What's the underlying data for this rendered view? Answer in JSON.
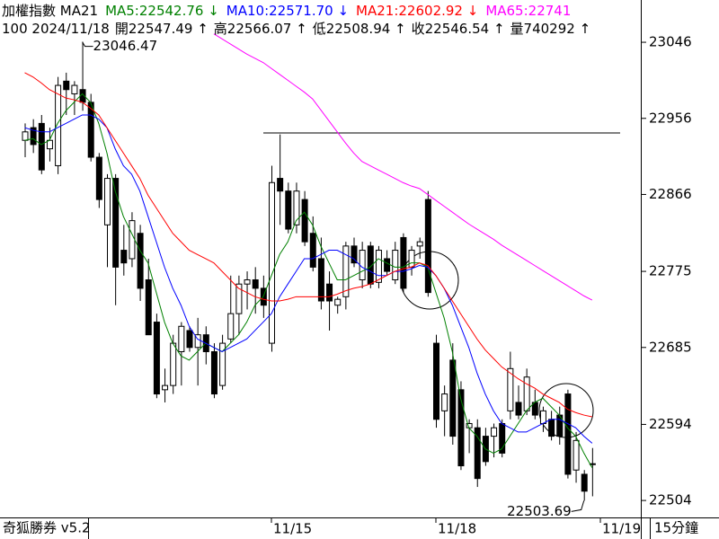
{
  "chart_data": {
    "type": "candlestick",
    "header": {
      "title": "加權指數 MA21",
      "ma_labels": [
        {
          "text": "MA5:22542.76 ↓",
          "color": "#008000"
        },
        {
          "text": "MA10:22571.70 ↓",
          "color": "#0000ff"
        },
        {
          "text": "MA21:22602.92 ↓",
          "color": "#ff0000"
        },
        {
          "text": "MA65:22741",
          "color": "#ff00ff"
        }
      ],
      "quote": [
        "100 2024/11/18",
        "開22547.49 ↑",
        "高22566.07 ↑",
        "低22508.94 ↑",
        "收22546.54 ↑",
        "量740292 ↑"
      ]
    },
    "footer": {
      "app": "奇狐勝券 v5.2",
      "period": "15分鐘"
    },
    "xlabels": [
      {
        "index": 30,
        "label": "11/15"
      },
      {
        "index": 50,
        "label": "11/18"
      },
      {
        "index": 70,
        "label": "11/19"
      }
    ],
    "open": [
      22930,
      22945,
      22950,
      22920,
      22900,
      23000,
      22985,
      22990,
      22975,
      22910,
      22830,
      22885,
      22800,
      22790,
      22820,
      22765,
      22715,
      22635,
      22640,
      22680,
      22705,
      22685,
      22700,
      22680,
      22640,
      22695,
      22725,
      22760,
      22765,
      22755,
      22690,
      22885,
      22870,
      22830,
      22860,
      22820,
      22790,
      22760,
      22735,
      22745,
      22805,
      22765,
      22805,
      22762,
      22790,
      22765,
      22815,
      22780,
      22805,
      22860,
      22690,
      22610,
      22670,
      22635,
      22590,
      22590,
      22580,
      22580,
      22595,
      22610,
      22620,
      22610,
      22620,
      22595,
      22600,
      22605,
      22630,
      22540,
      22535,
      22547.49
    ],
    "high": [
      22950,
      22955,
      22960,
      22945,
      23005,
      23010,
      23000,
      23046.47,
      22985,
      22915,
      22890,
      22890,
      22830,
      22845,
      22830,
      22790,
      22725,
      22660,
      22700,
      22715,
      22710,
      22720,
      22710,
      22690,
      22700,
      22770,
      22770,
      22775,
      22780,
      22770,
      22900,
      22937,
      22880,
      22880,
      22870,
      22840,
      22815,
      22775,
      22745,
      22810,
      22815,
      22810,
      22810,
      22805,
      22800,
      22810,
      22820,
      22805,
      22815,
      22870,
      22700,
      22640,
      22690,
      22645,
      22600,
      22600,
      22590,
      22595,
      22600,
      22680,
      22640,
      22660,
      22635,
      22615,
      22610,
      22615,
      22635,
      22585,
      22540,
      22566.07
    ],
    "low": [
      22910,
      22915,
      22890,
      22905,
      22890,
      22960,
      22960,
      22965,
      22905,
      22850,
      22780,
      22735,
      22770,
      22780,
      22740,
      22700,
      22625,
      22620,
      22630,
      22640,
      22680,
      22640,
      22665,
      22625,
      22635,
      22690,
      22700,
      22730,
      22725,
      22720,
      22680,
      22830,
      22820,
      22820,
      22805,
      22775,
      22730,
      22705,
      22725,
      22730,
      22780,
      22755,
      22755,
      22755,
      22770,
      22760,
      22750,
      22770,
      22790,
      22745,
      22590,
      22580,
      22570,
      22540,
      22560,
      22520,
      22545,
      22555,
      22555,
      22600,
      22600,
      22605,
      22600,
      22585,
      22575,
      22570,
      22530,
      22525,
      22503.69,
      22508.94
    ],
    "close": [
      22940,
      22925,
      22895,
      22930,
      22995,
      22990,
      22995,
      22975,
      22910,
      22860,
      22885,
      22780,
      22785,
      22835,
      22755,
      22700,
      22630,
      22640,
      22690,
      22710,
      22685,
      22700,
      22680,
      22630,
      22690,
      22725,
      22760,
      22765,
      22755,
      22735,
      22880,
      22870,
      22825,
      22870,
      22810,
      22780,
      22740,
      22740,
      22742,
      22805,
      22785,
      22800,
      22760,
      22800,
      22775,
      22800,
      22755,
      22800,
      22810,
      22750,
      22600,
      22630,
      22580,
      22545,
      22595,
      22530,
      22550,
      22590,
      22560,
      22660,
      22605,
      22650,
      22605,
      22610,
      22580,
      22580,
      22535,
      22575,
      22515,
      22546.54
    ],
    "up_color": "#ffffff",
    "down_color": "#000000",
    "series": [
      {
        "name": "MA5",
        "color": "#008000",
        "values": [
          22930,
          22932,
          22925,
          22930,
          22950,
          22965,
          22975,
          22985,
          22975,
          22950,
          22915,
          22870,
          22840,
          22820,
          22800,
          22785,
          22750,
          22715,
          22690,
          22675,
          22670,
          22680,
          22690,
          22685,
          22680,
          22690,
          22700,
          22715,
          22735,
          22745,
          22770,
          22795,
          22810,
          22835,
          22845,
          22830,
          22805,
          22785,
          22765,
          22765,
          22770,
          22775,
          22780,
          22790,
          22785,
          22780,
          22780,
          22785,
          22785,
          22780,
          22750,
          22720,
          22680,
          22625,
          22590,
          22580,
          22565,
          22560,
          22565,
          22580,
          22595,
          22610,
          22620,
          22625,
          22615,
          22605,
          22590,
          22580,
          22560,
          22542.76
        ]
      },
      {
        "name": "MA10",
        "color": "#0000ff",
        "values": [
          22945,
          22942,
          22940,
          22940,
          22945,
          22950,
          22955,
          22960,
          22960,
          22955,
          22945,
          22920,
          22900,
          22890,
          22870,
          22840,
          22810,
          22780,
          22755,
          22735,
          22710,
          22695,
          22690,
          22685,
          22680,
          22685,
          22690,
          22695,
          22705,
          22715,
          22725,
          22745,
          22760,
          22775,
          22790,
          22790,
          22795,
          22800,
          22800,
          22795,
          22790,
          22780,
          22775,
          22770,
          22770,
          22775,
          22775,
          22778,
          22782,
          22780,
          22770,
          22755,
          22735,
          22710,
          22685,
          22655,
          22630,
          22610,
          22595,
          22590,
          22585,
          22585,
          22590,
          22595,
          22600,
          22600,
          22595,
          22590,
          22580,
          22571.7
        ]
      },
      {
        "name": "MA21",
        "color": "#ff0000",
        "values": [
          23010,
          23005,
          22998,
          22990,
          22985,
          22980,
          22978,
          22975,
          22968,
          22960,
          22945,
          22930,
          22915,
          22900,
          22885,
          22865,
          22850,
          22835,
          22820,
          22810,
          22800,
          22795,
          22790,
          22785,
          22775,
          22765,
          22755,
          22750,
          22745,
          22742,
          22740,
          22740,
          22742,
          22745,
          22745,
          22745,
          22745,
          22745,
          22748,
          22752,
          22755,
          22757,
          22760,
          22765,
          22770,
          22775,
          22778,
          22780,
          22785,
          22782,
          22770,
          22755,
          22740,
          22725,
          22710,
          22695,
          22682,
          22672,
          22662,
          22655,
          22648,
          22642,
          22637,
          22630,
          22625,
          22620,
          22612,
          22608,
          22605,
          22602.92
        ]
      },
      {
        "name": "MA65",
        "color": "#ff00ff",
        "values": [
          null,
          null,
          null,
          null,
          null,
          null,
          null,
          null,
          null,
          null,
          null,
          null,
          null,
          null,
          null,
          null,
          null,
          null,
          null,
          null,
          null,
          null,
          null,
          23056,
          23050,
          23044,
          23038,
          23032,
          23027,
          23022,
          23015,
          23008,
          23001,
          22994,
          22987,
          22979,
          22966,
          22953,
          22940,
          22927,
          22915,
          22905,
          22900,
          22895,
          22890,
          22885,
          22880,
          22876,
          22873,
          22866,
          22859,
          22852,
          22845,
          22838,
          22831,
          22825,
          22819,
          22813,
          22806,
          22800,
          22794,
          22788,
          22782,
          22776,
          22770,
          22764,
          22758,
          22752,
          22746,
          22741
        ]
      }
    ],
    "high_label_index": 7,
    "low_label_index": 68,
    "ylim": [
      22485,
      23096
    ],
    "yticks": [
      22504,
      22594,
      22685,
      22775,
      22866,
      22956,
      23046
    ]
  }
}
